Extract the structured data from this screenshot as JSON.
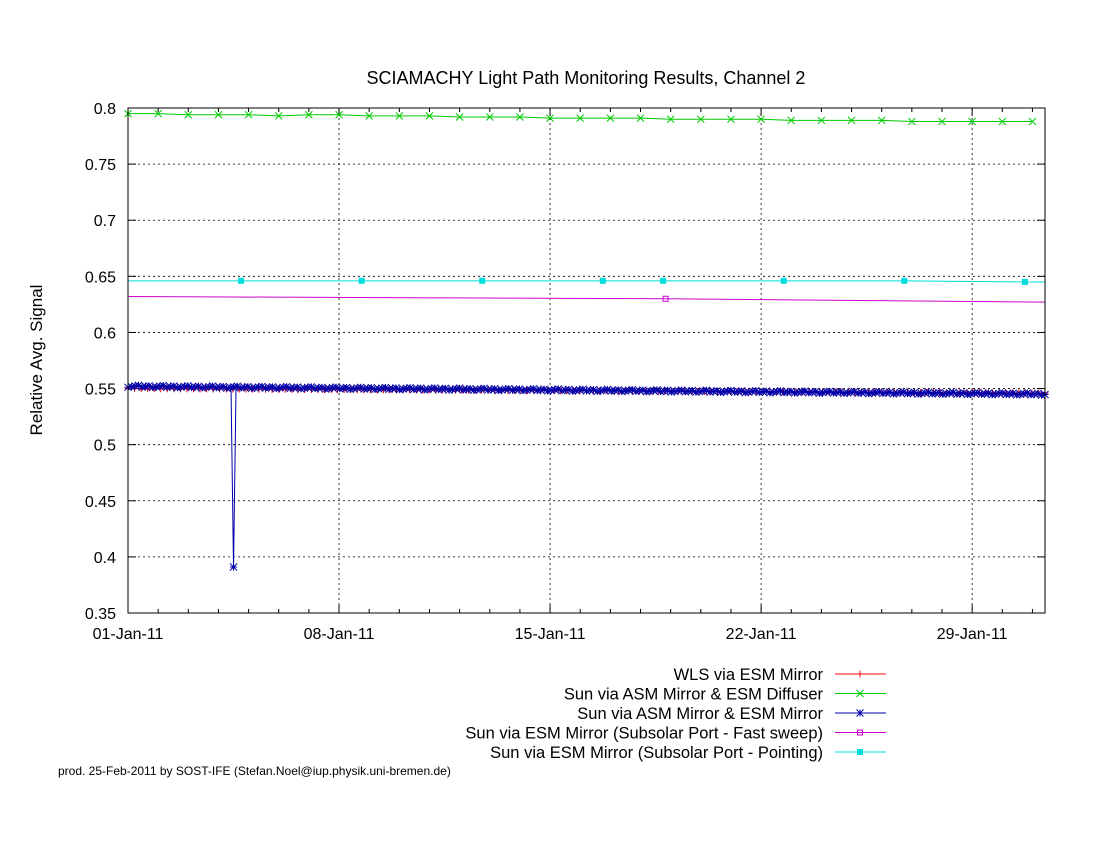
{
  "footer_text": "prod. 25-Feb-2011 by SOST-IFE (Stefan.Noel@iup.physik.uni-bremen.de)",
  "chart_data": {
    "type": "line",
    "title": "SCIAMACHY Light Path Monitoring Results, Channel 2",
    "xlabel": "",
    "ylabel": "Relative Avg. Signal",
    "x_axis": {
      "type": "date",
      "range": [
        "2011-01-01",
        "2011-01-31T10:00"
      ],
      "ticks": [
        {
          "date": "2011-01-01",
          "label": "01-Jan-11"
        },
        {
          "date": "2011-01-08",
          "label": "08-Jan-11"
        },
        {
          "date": "2011-01-15",
          "label": "15-Jan-11"
        },
        {
          "date": "2011-01-22",
          "label": "22-Jan-11"
        },
        {
          "date": "2011-01-29",
          "label": "29-Jan-11"
        }
      ]
    },
    "ylim": [
      0.35,
      0.8
    ],
    "yticks": [
      0.35,
      0.4,
      0.45,
      0.5,
      0.55,
      0.6,
      0.65,
      0.7,
      0.75,
      0.8
    ],
    "grid": true,
    "legend_position": "bottom-right",
    "series": [
      {
        "name": "WLS via ESM Mirror",
        "color": "#ff0000",
        "marker": "plus",
        "x": [
          "2011-01-01",
          "2011-01-31T10:00"
        ],
        "y": [
          0.55,
          0.546
        ],
        "dense_markers": true
      },
      {
        "name": "Sun via ASM Mirror & ESM Diffuser",
        "color": "#00cc00",
        "marker": "cross",
        "x": [
          "2011-01-01",
          "2011-01-02",
          "2011-01-03",
          "2011-01-04",
          "2011-01-05",
          "2011-01-06",
          "2011-01-07",
          "2011-01-08",
          "2011-01-09",
          "2011-01-10",
          "2011-01-11",
          "2011-01-12",
          "2011-01-13",
          "2011-01-14",
          "2011-01-15",
          "2011-01-16",
          "2011-01-17",
          "2011-01-18",
          "2011-01-19",
          "2011-01-20",
          "2011-01-21",
          "2011-01-22",
          "2011-01-23",
          "2011-01-24",
          "2011-01-25",
          "2011-01-26",
          "2011-01-27",
          "2011-01-28",
          "2011-01-29",
          "2011-01-30",
          "2011-01-31"
        ],
        "y": [
          0.795,
          0.795,
          0.794,
          0.794,
          0.794,
          0.793,
          0.794,
          0.794,
          0.793,
          0.793,
          0.793,
          0.792,
          0.792,
          0.792,
          0.791,
          0.791,
          0.791,
          0.791,
          0.79,
          0.79,
          0.79,
          0.79,
          0.789,
          0.789,
          0.789,
          0.789,
          0.788,
          0.788,
          0.788,
          0.788,
          0.788
        ]
      },
      {
        "name": "Sun via ASM Mirror & ESM Mirror",
        "color": "#0000aa",
        "marker": "star",
        "x": [
          "2011-01-01",
          "2011-01-04T08:00",
          "2011-01-04T10:00",
          "2011-01-04T12:00",
          "2011-01-04T14:00",
          "2011-01-04T16:00",
          "2011-01-31T10:00"
        ],
        "y": [
          0.552,
          0.551,
          0.551,
          0.391,
          0.551,
          0.551,
          0.545
        ],
        "dense_markers": true
      },
      {
        "name": "Sun via ESM Mirror (Subsolar Port - Fast sweep)",
        "color": "#cc00cc",
        "marker": "square",
        "x": [
          "2011-01-01",
          "2011-01-18T20:00",
          "2011-01-31T10:00"
        ],
        "y": [
          0.632,
          0.63,
          0.627
        ],
        "marked_points": [
          {
            "x": "2011-01-18T20:00",
            "y": 0.63
          }
        ]
      },
      {
        "name": "Sun via ESM Mirror (Subsolar Port - Pointing)",
        "color": "#00dddd",
        "marker": "filled-square",
        "x": [
          "2011-01-01",
          "2011-01-04T18:00",
          "2011-01-08T18:00",
          "2011-01-12T18:00",
          "2011-01-16T18:00",
          "2011-01-18T18:00",
          "2011-01-22T18:00",
          "2011-01-26T18:00",
          "2011-01-30T18:00",
          "2011-01-31T10:00"
        ],
        "y": [
          0.646,
          0.646,
          0.646,
          0.646,
          0.646,
          0.646,
          0.646,
          0.646,
          0.645,
          0.645
        ],
        "marked_points": [
          {
            "x": "2011-01-04T18:00",
            "y": 0.646
          },
          {
            "x": "2011-01-08T18:00",
            "y": 0.646
          },
          {
            "x": "2011-01-12T18:00",
            "y": 0.646
          },
          {
            "x": "2011-01-16T18:00",
            "y": 0.646
          },
          {
            "x": "2011-01-18T18:00",
            "y": 0.646
          },
          {
            "x": "2011-01-22T18:00",
            "y": 0.646
          },
          {
            "x": "2011-01-26T18:00",
            "y": 0.646
          },
          {
            "x": "2011-01-30T18:00",
            "y": 0.645
          }
        ]
      }
    ]
  }
}
